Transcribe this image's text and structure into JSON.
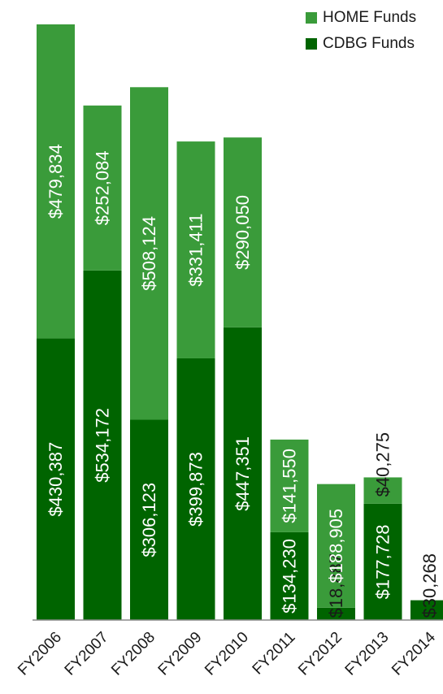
{
  "chart_data": {
    "type": "bar",
    "stacked": true,
    "categories": [
      "FY2006",
      "FY2007",
      "FY2008",
      "FY2009",
      "FY2010",
      "FY2011",
      "FY2012",
      "FY2013",
      "FY2014"
    ],
    "series": [
      {
        "name": "CDBG Funds",
        "color": "#006400",
        "values": [
          430387,
          534172,
          306123,
          399873,
          447351,
          134230,
          18887,
          177728,
          30268
        ],
        "labels": [
          "$430,387",
          "$534,172",
          "$306,123",
          "$399,873",
          "$447,351",
          "$134,230",
          "$18,887",
          "$177,728",
          "$30,268"
        ]
      },
      {
        "name": "HOME Funds",
        "color": "#3a9b3a",
        "values": [
          479834,
          252084,
          508124,
          331411,
          290050,
          141550,
          188905,
          40275,
          0
        ],
        "labels": [
          "$479,834",
          "$252,084",
          "$508,124",
          "$331,411",
          "$290,050",
          "$141,550",
          "$188,905",
          "$40,275",
          ""
        ]
      }
    ],
    "legend": {
      "position": "top-right",
      "items": [
        {
          "label": "HOME Funds",
          "color": "#3a9b3a"
        },
        {
          "label": "CDBG Funds",
          "color": "#006400"
        }
      ]
    },
    "ylim": [
      0,
      910221
    ],
    "y_axis_visible": false,
    "grid": false
  }
}
